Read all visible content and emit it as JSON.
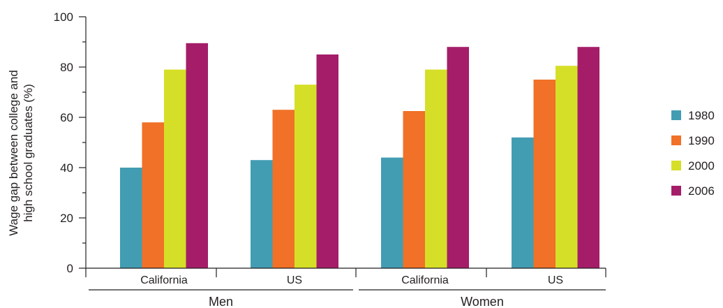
{
  "chart_data": {
    "type": "bar",
    "ylabel_lines": [
      "Wage gap between college and",
      "high school graduates (%)"
    ],
    "ylim": [
      0,
      100
    ],
    "yticks": [
      0,
      20,
      40,
      60,
      80,
      100
    ],
    "groups": [
      {
        "label": "Men",
        "categories": [
          "California",
          "US"
        ]
      },
      {
        "label": "Women",
        "categories": [
          "California",
          "US"
        ]
      }
    ],
    "series": [
      {
        "name": "1980",
        "color": "#429db3",
        "values": [
          40,
          43,
          44,
          52
        ]
      },
      {
        "name": "1990",
        "color": "#f07127",
        "values": [
          58,
          63,
          62.5,
          75
        ]
      },
      {
        "name": "2000",
        "color": "#d6df27",
        "values": [
          79,
          73,
          79,
          80.5
        ]
      },
      {
        "name": "2006",
        "color": "#a51d68",
        "values": [
          89.5,
          85,
          88,
          88
        ]
      }
    ],
    "legend_position": "right",
    "grid": false
  }
}
